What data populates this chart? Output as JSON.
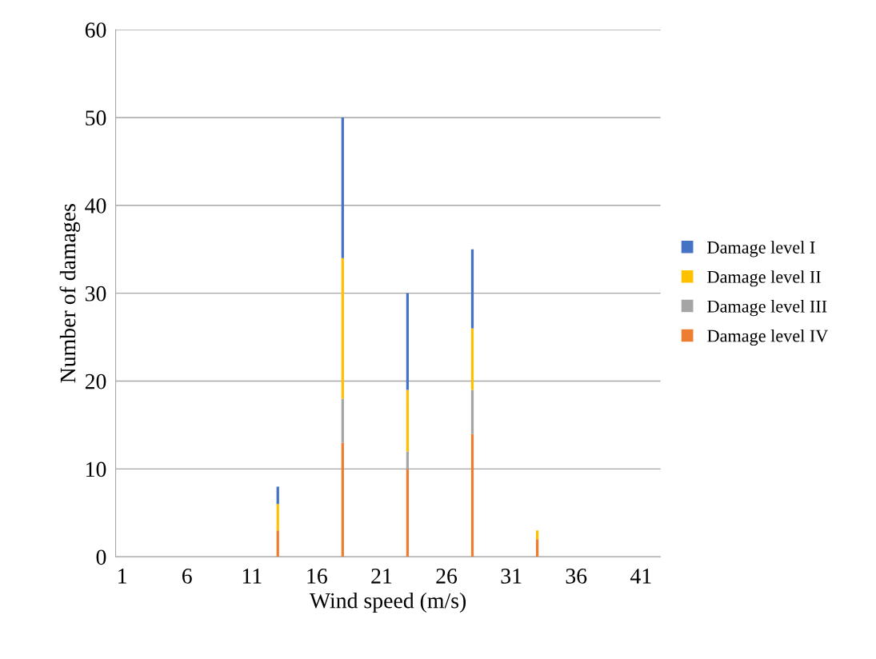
{
  "chart_data": {
    "type": "bar",
    "stacked": true,
    "xlabel": "Wind speed (m/s)",
    "ylabel": "Number of damages",
    "categories": [
      "1",
      null,
      null,
      null,
      null,
      "6",
      null,
      null,
      null,
      null,
      "11",
      null,
      null,
      null,
      null,
      "16",
      null,
      null,
      null,
      null,
      "21",
      null,
      null,
      null,
      null,
      "26",
      null,
      null,
      null,
      null,
      "31",
      null,
      null,
      null,
      null,
      "36",
      null,
      null,
      null,
      null,
      "41",
      null
    ],
    "series": [
      {
        "name": "Damage level IV",
        "color": "#ed7d31",
        "values": [
          0,
          0,
          0,
          0,
          0,
          0,
          0,
          0,
          0,
          0,
          0,
          0,
          3,
          0,
          0,
          0,
          0,
          13,
          0,
          0,
          0,
          0,
          10,
          0,
          0,
          0,
          0,
          14,
          0,
          0,
          0,
          0,
          2,
          0,
          0,
          0,
          0,
          0,
          0,
          0,
          0,
          0
        ]
      },
      {
        "name": "Damage level III",
        "color": "#a5a5a5",
        "values": [
          0,
          0,
          0,
          0,
          0,
          0,
          0,
          0,
          0,
          0,
          0,
          0,
          0,
          0,
          0,
          0,
          0,
          5,
          0,
          0,
          0,
          0,
          2,
          0,
          0,
          0,
          0,
          5,
          0,
          0,
          0,
          0,
          0,
          0,
          0,
          0,
          0,
          0,
          0,
          0,
          0,
          0
        ]
      },
      {
        "name": "Damage level II",
        "color": "#ffc000",
        "values": [
          0,
          0,
          0,
          0,
          0,
          0,
          0,
          0,
          0,
          0,
          0,
          0,
          3,
          0,
          0,
          0,
          0,
          16,
          0,
          0,
          0,
          0,
          7,
          0,
          0,
          0,
          0,
          7,
          0,
          0,
          0,
          0,
          1,
          0,
          0,
          0,
          0,
          0,
          0,
          0,
          0,
          0
        ]
      },
      {
        "name": "Damage level I",
        "color": "#4472c4",
        "values": [
          0,
          0,
          0,
          0,
          0,
          0,
          0,
          0,
          0,
          0,
          0,
          0,
          2,
          0,
          0,
          0,
          0,
          16,
          0,
          0,
          0,
          0,
          11,
          0,
          0,
          0,
          0,
          9,
          0,
          0,
          0,
          0,
          0,
          0,
          0,
          0,
          0,
          0,
          0,
          0,
          0,
          0
        ]
      }
    ],
    "ylim": [
      0,
      60
    ],
    "yticks": [
      0,
      10,
      20,
      30,
      40,
      50,
      60
    ],
    "grid": "y",
    "legend": "right"
  }
}
